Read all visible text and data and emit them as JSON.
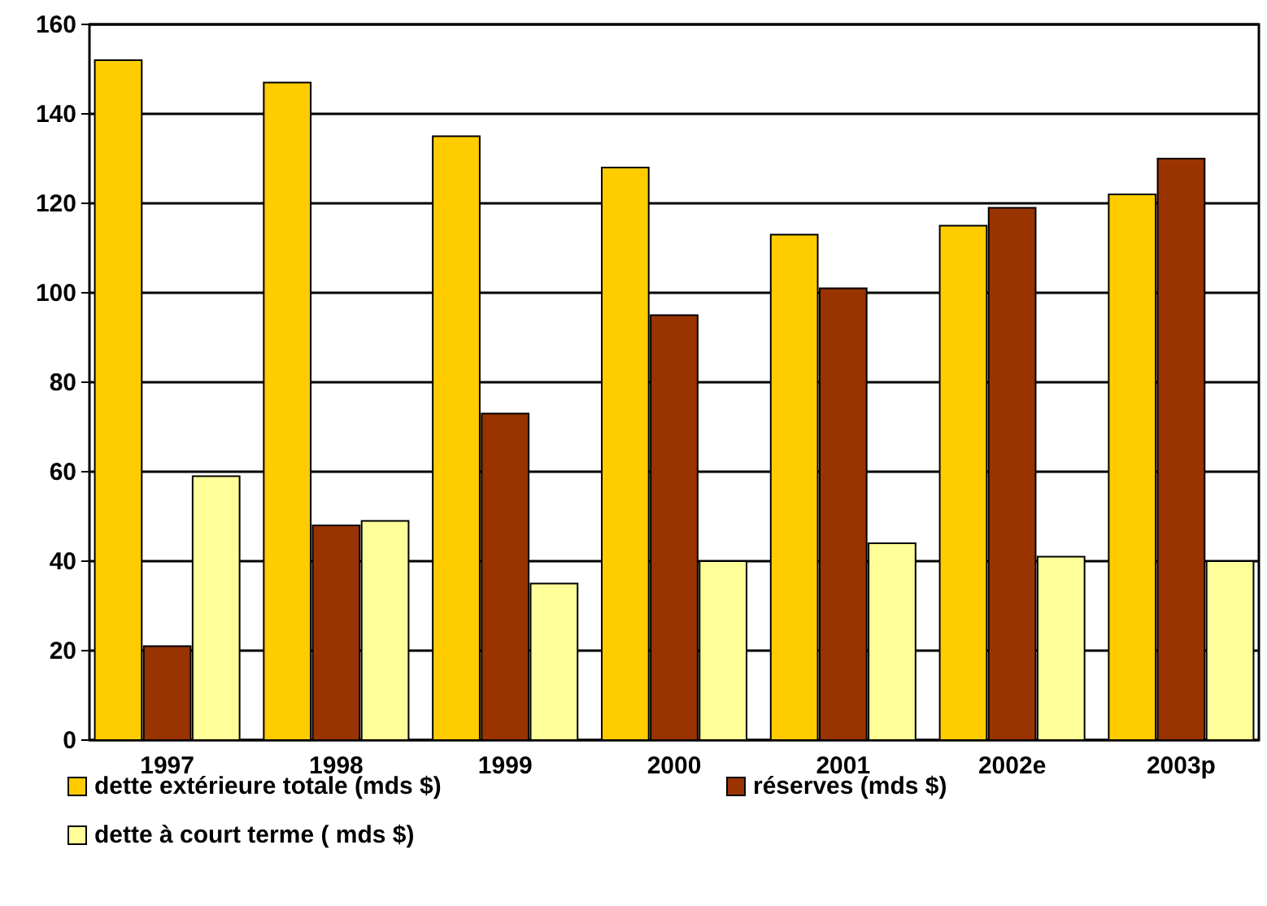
{
  "chart_data": {
    "type": "bar",
    "categories": [
      "1997",
      "1998",
      "1999",
      "2000",
      "2001",
      "2002e",
      "2003p"
    ],
    "series": [
      {
        "name": "dette extérieure totale (mds $)",
        "color": "#ffcc00",
        "values": [
          152,
          147,
          135,
          128,
          113,
          115,
          122
        ]
      },
      {
        "name": "réserves (mds $)",
        "color": "#993300",
        "values": [
          21,
          48,
          73,
          95,
          101,
          119,
          130
        ]
      },
      {
        "name": "dette à court terme ( mds $)",
        "color": "#ffff99",
        "values": [
          59,
          49,
          35,
          40,
          44,
          41,
          40
        ]
      }
    ],
    "ylim": [
      0,
      160
    ],
    "yticks": [
      0,
      20,
      40,
      60,
      80,
      100,
      120,
      140,
      160
    ],
    "grid": "y",
    "legend": "bottom"
  }
}
